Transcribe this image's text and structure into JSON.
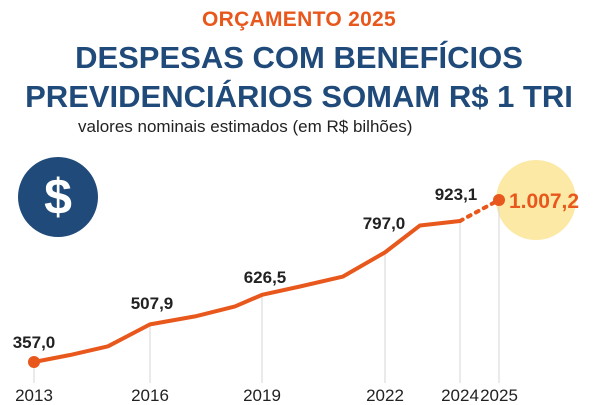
{
  "header": {
    "kicker": "ORÇAMENTO 2025",
    "title_line1": "DESPESAS COM BENEFÍCIOS",
    "title_line2": "PREVIDENCIÁRIOS SOMAM R$ 1 TRI",
    "subtitle": "valores nominais estimados  (em R$ bilhões)"
  },
  "icon": {
    "name": "dollar-coin-icon",
    "glyph": "$"
  },
  "colors": {
    "accent": "#e8581c",
    "navy": "#1f4a7a",
    "highlight": "#fde9a6"
  },
  "chart_data": {
    "type": "line",
    "ylim": [
      300,
      1050
    ],
    "x": [
      2013,
      2014,
      2015,
      2016,
      2017,
      2018,
      2019,
      2020,
      2021,
      2022,
      2023,
      2024,
      2025
    ],
    "series": [
      {
        "values": [
          357.0,
          385,
          420,
          507.9,
          540,
          580,
          626.5,
          660,
          700,
          797.0,
          905,
          923.1,
          1007.2
        ]
      }
    ],
    "projected_from_index": 11,
    "tick_labels": [
      "2013",
      "2016",
      "2019",
      "2022",
      "2024",
      "2025"
    ],
    "data_labels": [
      {
        "index": 0,
        "text": "357,0"
      },
      {
        "index": 3,
        "text": "507,9"
      },
      {
        "index": 6,
        "text": "626,5"
      },
      {
        "index": 9,
        "text": "797,0"
      },
      {
        "index": 11,
        "text": "923,1"
      },
      {
        "index": 12,
        "text": "1.007,2"
      }
    ]
  }
}
